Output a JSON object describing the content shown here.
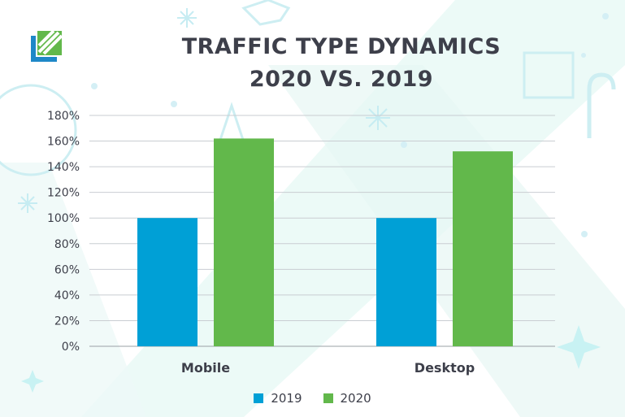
{
  "chart_data": {
    "type": "bar",
    "title_line1": "TRAFFIC TYPE DYNAMICS",
    "title_line2": "2020 VS. 2019",
    "categories": [
      "Mobile",
      "Desktop"
    ],
    "series": [
      {
        "name": "2019",
        "values": [
          100,
          100
        ],
        "color": "#00a0d6"
      },
      {
        "name": "2020",
        "values": [
          162,
          152
        ],
        "color": "#62b84b"
      }
    ],
    "ylim": [
      0,
      180
    ],
    "yticks": [
      "0%",
      "20%",
      "40%",
      "60%",
      "80%",
      "100%",
      "120%",
      "140%",
      "160%",
      "180%"
    ],
    "grid": true,
    "legend_position": "bottom"
  },
  "logo": {
    "icon": "striped-square-logo-icon",
    "colors": [
      "#1e88c8",
      "#62b84b"
    ]
  }
}
